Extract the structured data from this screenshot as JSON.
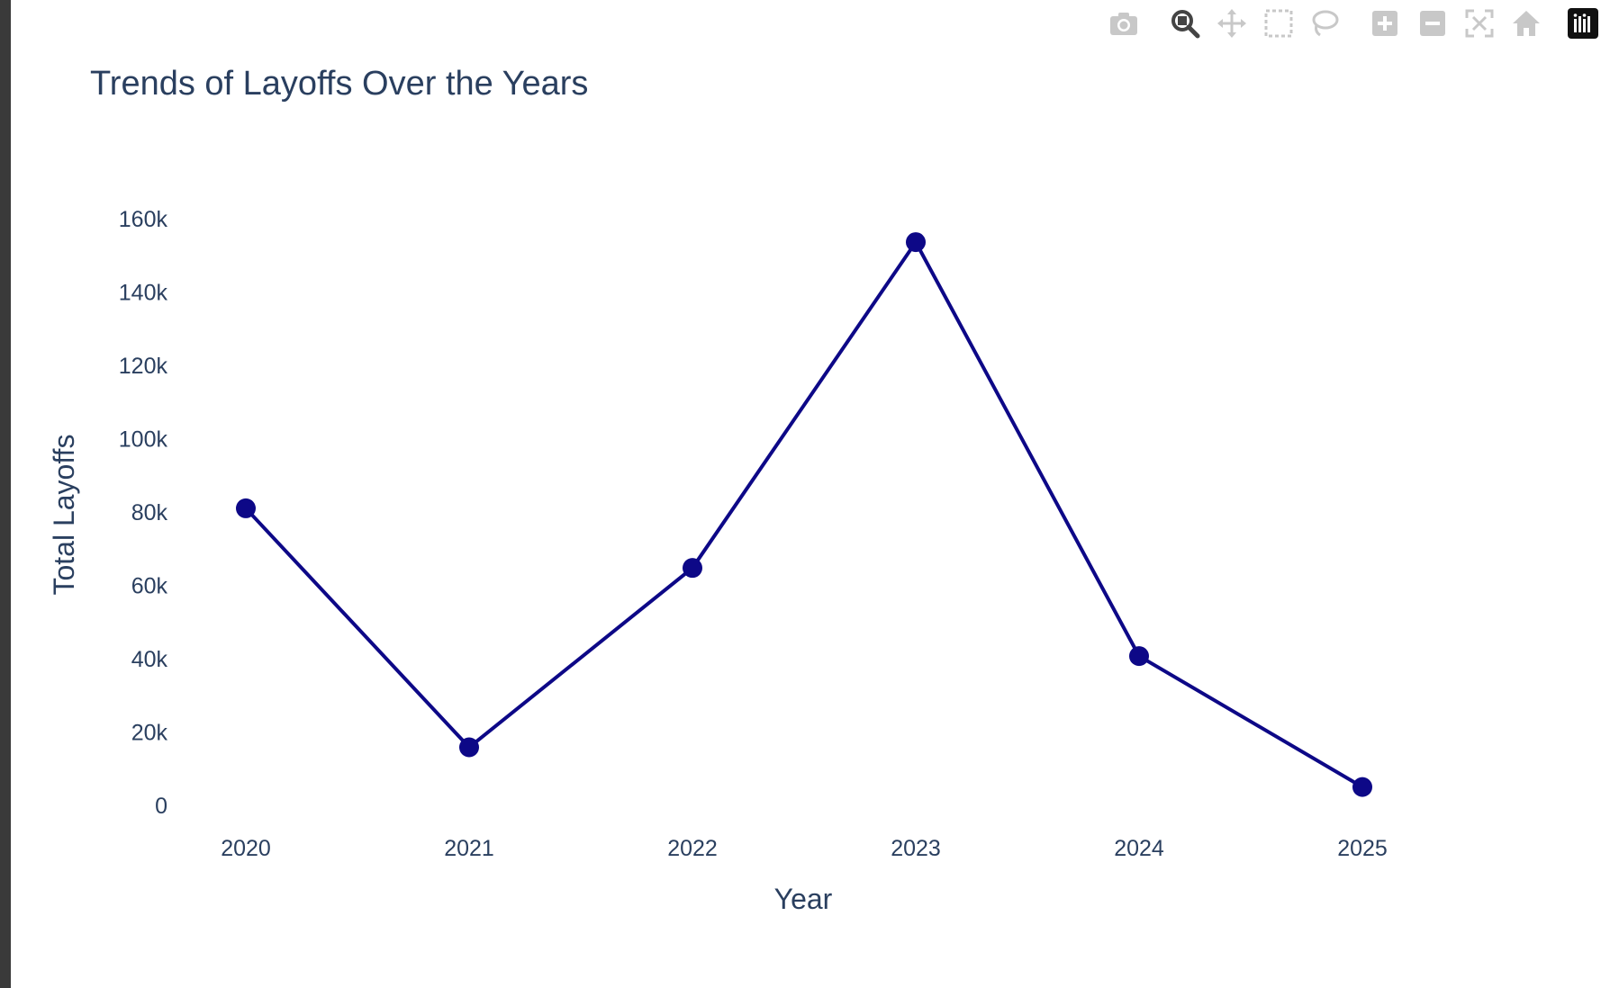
{
  "modebar": {
    "buttons": [
      {
        "name": "camera-icon",
        "label": "Download plot as a png"
      },
      {
        "name": "zoom-icon",
        "label": "Zoom"
      },
      {
        "name": "pan-icon",
        "label": "Pan"
      },
      {
        "name": "box-select-icon",
        "label": "Box Select"
      },
      {
        "name": "lasso-select-icon",
        "label": "Lasso Select"
      },
      {
        "name": "zoom-in-icon",
        "label": "Zoom in"
      },
      {
        "name": "zoom-out-icon",
        "label": "Zoom out"
      },
      {
        "name": "autoscale-icon",
        "label": "Autoscale"
      },
      {
        "name": "reset-axes-icon",
        "label": "Reset axes"
      },
      {
        "name": "plotly-logo-icon",
        "label": "Produced with Plotly"
      }
    ],
    "active": "zoom-icon"
  },
  "chart_data": {
    "type": "line",
    "title": "Trends of Layoffs Over the Years",
    "xlabel": "Year",
    "ylabel": "Total Layoffs",
    "categories": [
      "2020",
      "2021",
      "2022",
      "2023",
      "2024",
      "2025"
    ],
    "series": [
      {
        "values": [
          80998,
          15823,
          64740,
          153597,
          40703,
          5000
        ],
        "color": "#0d0887"
      }
    ],
    "ylim": [
      0,
      160000
    ],
    "yticks": [
      0,
      20000,
      40000,
      60000,
      80000,
      100000,
      120000,
      140000,
      160000
    ],
    "ytick_labels": [
      "0",
      "20k",
      "40k",
      "60k",
      "80k",
      "100k",
      "120k",
      "140k",
      "160k"
    ],
    "grid": false,
    "markers": true
  },
  "colors": {
    "title": "#2a3f5f",
    "line": "#0d0887",
    "modebar_icon": "#c8c8c8",
    "modebar_active": "#444444"
  }
}
